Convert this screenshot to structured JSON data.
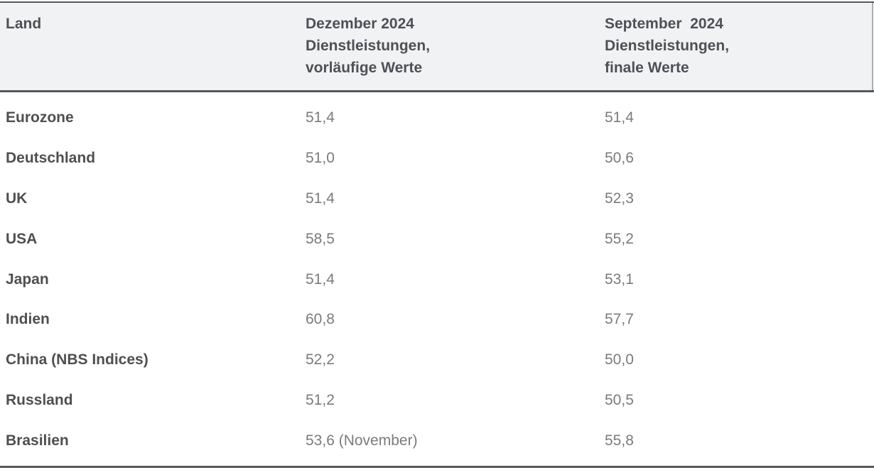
{
  "header": {
    "col_land": "Land",
    "col_december": "Dezember 2024\nDienstleistungen,\nvorläufige Werte",
    "col_september": "September  2024\nDienstleistungen,\nfinale Werte"
  },
  "colors": {
    "header_background": "#f1f2f4",
    "header_text": "#4d5156",
    "rule": "#55585c",
    "header_right_edge": "#aaaeb3",
    "country_text": "#4f4f4f",
    "value_text": "#7b7b7b",
    "page_background": "#ffffff"
  },
  "chart_data": {
    "type": "table",
    "title": "",
    "columns": [
      "Land",
      "Dezember 2024 Dienstleistungen, vorläufige Werte",
      "September 2024 Dienstleistungen, finale Werte"
    ],
    "rows": [
      [
        "Eurozone",
        "51,4",
        "51,4"
      ],
      [
        "Deutschland",
        "51,0",
        "50,6"
      ],
      [
        "UK",
        "51,4",
        "52,3"
      ],
      [
        "USA",
        "58,5",
        "55,2"
      ],
      [
        "Japan",
        "51,4",
        "53,1"
      ],
      [
        "Indien",
        "60,8",
        "57,7"
      ],
      [
        "China (NBS Indices)",
        "52,2",
        "50,0"
      ],
      [
        "Russland",
        "51,2",
        "50,5"
      ],
      [
        "Brasilien",
        "53,6 (November)",
        "55,8"
      ]
    ],
    "values_numeric": {
      "dezember_2024_vorlaeufig": [
        51.4,
        51.0,
        51.4,
        58.5,
        51.4,
        60.8,
        52.2,
        51.2,
        53.6
      ],
      "september_2024_final": [
        51.4,
        50.6,
        52.3,
        55.2,
        53.1,
        57.7,
        50.0,
        50.5,
        55.8
      ]
    }
  }
}
